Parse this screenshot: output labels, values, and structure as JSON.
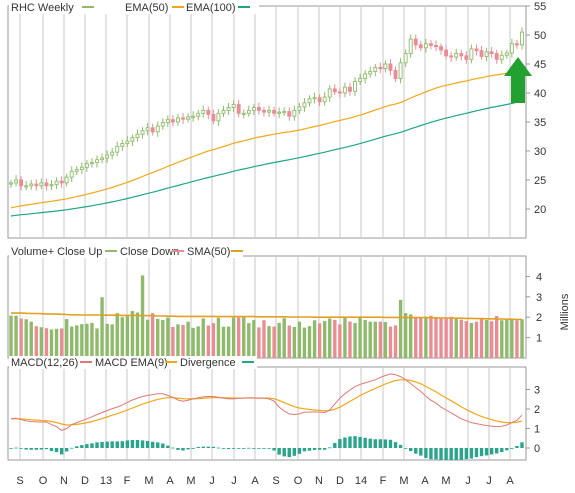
{
  "colors": {
    "up": "#8fba6c",
    "down": "#e88d94",
    "ema50": "#f0a818",
    "ema100": "#1fa586",
    "sma": "#e0a020",
    "macd": "#e07878",
    "signal": "#f0a818",
    "divergence": "#2aa58c",
    "arrow": "#22a030",
    "grid": "#c8c8c8"
  },
  "legend": {
    "price": {
      "symbol": "RHC Weekly",
      "ema50": "EMA(50)",
      "ema100": "EMA(100)"
    },
    "volume": {
      "up": "Volume+ Close Up",
      "down": "Close Down",
      "sma": "SMA(50)"
    },
    "macd": {
      "macd": "MACD(12,26)",
      "signal": "MACD EMA(9)",
      "divergence": "Divergence"
    }
  },
  "volume_axis_title": "Millions",
  "chart_data": [
    {
      "type": "candlestick",
      "title": "RHC Weekly",
      "ylim": [
        15,
        55
      ],
      "yticks": [
        20,
        25,
        30,
        35,
        40,
        45,
        50,
        55
      ],
      "x_labels": [
        "S",
        "O",
        "N",
        "D",
        "13",
        "F",
        "M",
        "A",
        "M",
        "J",
        "J",
        "A",
        "S",
        "O",
        "N",
        "D",
        "14",
        "F",
        "M",
        "A",
        "M",
        "J",
        "J",
        "A"
      ],
      "close": [
        24.5,
        25,
        24,
        24,
        24.3,
        24,
        24.5,
        24,
        24.2,
        24.8,
        24.5,
        25.5,
        26.5,
        26.8,
        27.2,
        27.8,
        28,
        28.5,
        28.8,
        29.3,
        29.8,
        30.8,
        31.3,
        31.7,
        32.3,
        32.9,
        33.5,
        34,
        33.3,
        34.3,
        34.9,
        35.4,
        35,
        35.7,
        35.5,
        35.9,
        36,
        36.5,
        37,
        36.3,
        35.2,
        36.5,
        37,
        37.5,
        38,
        36.5,
        36.5,
        37,
        37.5,
        37,
        36.7,
        37,
        36.5,
        36.7,
        36.8,
        36,
        37,
        37.6,
        38.3,
        39,
        39.2,
        38.5,
        39.3,
        40.7,
        40.2,
        40,
        41,
        40.3,
        42,
        42.5,
        43.3,
        43.7,
        44.4,
        44.2,
        45,
        43.9,
        42.5,
        45.2,
        46.8,
        49.3,
        48.3,
        47.8,
        48.5,
        48.2,
        48,
        47.4,
        46.4,
        46.2,
        46.8,
        46.4,
        45.8,
        47.6,
        47.3,
        46.3,
        47.1,
        46.8,
        45.8,
        46.5,
        46.9,
        48.5,
        48.3,
        50.5
      ],
      "series": [
        {
          "name": "EMA(50)",
          "values": [
            20.2,
            20.38,
            20.53,
            20.67,
            20.81,
            20.94,
            21.08,
            21.2,
            21.33,
            21.47,
            21.6,
            21.76,
            21.94,
            22.13,
            22.33,
            22.55,
            22.76,
            22.99,
            23.22,
            23.46,
            23.71,
            24.01,
            24.3,
            24.6,
            24.92,
            25.25,
            25.6,
            25.96,
            26.27,
            26.62,
            26.98,
            27.36,
            27.69,
            28.05,
            28.38,
            28.72,
            29.04,
            29.37,
            29.71,
            30.0,
            30.23,
            30.5,
            30.77,
            31.05,
            31.34,
            31.56,
            31.76,
            31.98,
            32.2,
            32.4,
            32.57,
            32.75,
            32.9,
            33.05,
            33.2,
            33.3,
            33.45,
            33.62,
            33.81,
            34.02,
            34.23,
            34.4,
            34.6,
            34.86,
            35.07,
            35.26,
            35.49,
            35.68,
            35.93,
            36.19,
            36.47,
            36.76,
            37.07,
            37.35,
            37.66,
            37.91,
            38.09,
            38.37,
            38.71,
            39.14,
            39.51,
            39.85,
            40.21,
            40.54,
            40.84,
            41.11,
            41.32,
            41.52,
            41.73,
            41.91,
            42.06,
            42.29,
            42.49,
            42.64,
            42.83,
            43.0,
            43.12,
            43.26,
            43.41,
            43.61,
            43.8,
            44.07
          ]
        },
        {
          "name": "EMA(100)",
          "values": [
            18.8,
            18.91,
            19.01,
            19.09,
            19.19,
            19.28,
            19.38,
            19.47,
            19.56,
            19.66,
            19.76,
            19.87,
            20.0,
            20.13,
            20.27,
            20.42,
            20.57,
            20.73,
            20.89,
            21.05,
            21.23,
            21.42,
            21.61,
            21.81,
            22.02,
            22.24,
            22.46,
            22.69,
            22.9,
            23.12,
            23.36,
            23.6,
            23.82,
            24.06,
            24.29,
            24.52,
            24.75,
            24.98,
            25.22,
            25.43,
            25.63,
            25.84,
            26.06,
            26.28,
            26.51,
            26.7,
            26.89,
            27.09,
            27.29,
            27.48,
            27.66,
            27.84,
            28.01,
            28.18,
            28.35,
            28.5,
            28.67,
            28.85,
            29.04,
            29.23,
            29.43,
            29.61,
            29.8,
            30.02,
            30.22,
            30.41,
            30.62,
            30.82,
            31.05,
            31.28,
            31.53,
            31.78,
            32.04,
            32.29,
            32.55,
            32.78,
            32.98,
            33.23,
            33.5,
            33.82,
            34.11,
            34.39,
            34.67,
            34.95,
            35.21,
            35.45,
            35.67,
            35.88,
            36.1,
            36.31,
            36.5,
            36.72,
            36.93,
            37.12,
            37.32,
            37.51,
            37.67,
            37.84,
            38.01,
            38.2,
            38.39,
            38.61
          ]
        }
      ],
      "annotation": "up-arrow"
    },
    {
      "type": "bar",
      "title": "Volume+ Close Up",
      "ylabel": "Millions",
      "ylim": [
        0,
        5
      ],
      "yticks": [
        1,
        2,
        3,
        4
      ],
      "values": [
        2.08,
        2.07,
        1.94,
        1.9,
        1.78,
        1.56,
        1.51,
        1.46,
        1.4,
        1.43,
        1.45,
        1.91,
        1.54,
        1.6,
        1.66,
        1.68,
        1.72,
        1.45,
        2.98,
        1.67,
        1.65,
        2.2,
        2.0,
        2.05,
        2.3,
        2.23,
        4.05,
        1.88,
        2.2,
        1.92,
        1.86,
        1.98,
        1.52,
        1.65,
        1.62,
        1.78,
        1.48,
        1.55,
        1.94,
        1.59,
        1.71,
        1.97,
        1.53,
        1.54,
        1.98,
        1.99,
        2.0,
        1.71,
        1.86,
        1.5,
        1.85,
        1.56,
        1.54,
        1.72,
        1.95,
        1.59,
        1.52,
        1.78,
        1.49,
        1.56,
        1.85,
        1.7,
        1.81,
        1.94,
        1.87,
        1.65,
        1.96,
        1.79,
        1.71,
        1.99,
        1.86,
        1.78,
        1.78,
        1.78,
        1.76,
        1.54,
        1.6,
        2.85,
        2.2,
        2.14,
        2.01,
        1.98,
        2.03,
        2.07,
        2.01,
        1.98,
        1.96,
        2.02,
        1.91,
        1.88,
        1.81,
        1.72,
        1.78,
        1.94,
        1.86,
        1.8,
        2.06,
        1.85,
        1.9,
        1.88,
        1.85,
        1.9
      ],
      "up": [
        true,
        true,
        false,
        true,
        true,
        false,
        true,
        false,
        true,
        true,
        false,
        true,
        true,
        true,
        true,
        true,
        true,
        true,
        true,
        true,
        true,
        true,
        true,
        true,
        true,
        true,
        true,
        true,
        false,
        true,
        true,
        true,
        false,
        true,
        false,
        true,
        true,
        true,
        true,
        false,
        false,
        true,
        true,
        true,
        true,
        false,
        true,
        true,
        true,
        false,
        false,
        true,
        false,
        true,
        true,
        false,
        true,
        true,
        true,
        true,
        true,
        false,
        true,
        true,
        false,
        false,
        true,
        false,
        true,
        true,
        true,
        true,
        true,
        false,
        true,
        false,
        false,
        true,
        true,
        true,
        false,
        false,
        true,
        false,
        false,
        false,
        false,
        false,
        true,
        false,
        false,
        true,
        false,
        false,
        true,
        false,
        false,
        true,
        true,
        true,
        false,
        true
      ],
      "series": [
        {
          "name": "SMA(50)",
          "values": [
            2.2,
            2.2,
            2.2,
            2.19,
            2.18,
            2.18,
            2.17,
            2.16,
            2.16,
            2.15,
            2.14,
            2.13,
            2.12,
            2.12,
            2.11,
            2.11,
            2.11,
            2.11,
            2.11,
            2.1,
            2.1,
            2.1,
            2.09,
            2.09,
            2.09,
            2.08,
            2.08,
            2.08,
            2.07,
            2.06,
            2.06,
            2.05,
            2.05,
            2.04,
            2.04,
            2.04,
            2.04,
            2.04,
            2.04,
            2.04,
            2.04,
            2.03,
            2.03,
            2.03,
            2.03,
            2.03,
            2.03,
            2.03,
            2.03,
            2.02,
            2.02,
            2.02,
            2.02,
            2.02,
            2.02,
            2.01,
            2.01,
            2.01,
            2.01,
            2.01,
            2.0,
            2.0,
            2.0,
            2.0,
            2.0,
            2.0,
            2.0,
            2.0,
            2.0,
            2.0,
            2.0,
            2.0,
            2.0,
            2.0,
            1.99,
            1.99,
            1.99,
            1.99,
            1.99,
            1.98,
            1.98,
            1.98,
            1.98,
            1.97,
            1.97,
            1.96,
            1.96,
            1.96,
            1.95,
            1.95,
            1.94,
            1.94,
            1.93,
            1.93,
            1.92,
            1.92,
            1.91,
            1.91,
            1.9,
            1.9,
            1.89,
            1.89
          ]
        }
      ]
    },
    {
      "type": "line",
      "title": "MACD(12,26)",
      "ylim": [
        -1,
        4
      ],
      "yticks": [
        0,
        1,
        2,
        3
      ],
      "series": [
        {
          "name": "MACD(12,26)",
          "values": [
            1.5,
            1.53,
            1.45,
            1.39,
            1.36,
            1.34,
            1.33,
            1.34,
            1.2,
            1.1,
            0.9,
            1.0,
            1.2,
            1.3,
            1.4,
            1.5,
            1.6,
            1.72,
            1.82,
            1.92,
            2.02,
            2.1,
            2.2,
            2.34,
            2.46,
            2.56,
            2.64,
            2.7,
            2.74,
            2.78,
            2.78,
            2.7,
            2.6,
            2.46,
            2.4,
            2.45,
            2.52,
            2.58,
            2.62,
            2.64,
            2.64,
            2.6,
            2.56,
            2.52,
            2.52,
            2.55,
            2.56,
            2.58,
            2.56,
            2.56,
            2.56,
            2.52,
            2.4,
            2.1,
            1.9,
            1.75,
            1.72,
            1.75,
            1.84,
            1.84,
            1.85,
            1.84,
            1.82,
            1.95,
            2.25,
            2.56,
            2.78,
            2.98,
            3.15,
            3.26,
            3.34,
            3.42,
            3.5,
            3.62,
            3.72,
            3.8,
            3.76,
            3.66,
            3.5,
            3.3,
            3.1,
            2.9,
            2.65,
            2.45,
            2.3,
            2.1,
            1.95,
            1.8,
            1.65,
            1.5,
            1.4,
            1.3,
            1.25,
            1.2,
            1.15,
            1.12,
            1.1,
            1.12,
            1.18,
            1.3,
            1.42,
            1.68
          ]
        },
        {
          "name": "MACD EMA(9)",
          "values": [
            1.5,
            1.51,
            1.49,
            1.47,
            1.45,
            1.43,
            1.41,
            1.4,
            1.36,
            1.31,
            1.23,
            1.18,
            1.19,
            1.21,
            1.25,
            1.3,
            1.36,
            1.43,
            1.51,
            1.59,
            1.68,
            1.76,
            1.85,
            1.95,
            2.05,
            2.15,
            2.25,
            2.34,
            2.42,
            2.49,
            2.55,
            2.58,
            2.58,
            2.56,
            2.53,
            2.52,
            2.52,
            2.53,
            2.55,
            2.57,
            2.58,
            2.58,
            2.58,
            2.57,
            2.56,
            2.56,
            2.56,
            2.57,
            2.57,
            2.56,
            2.56,
            2.56,
            2.53,
            2.44,
            2.33,
            2.22,
            2.12,
            2.05,
            2.01,
            1.98,
            1.95,
            1.93,
            1.91,
            1.92,
            1.99,
            2.1,
            2.24,
            2.39,
            2.54,
            2.69,
            2.82,
            2.94,
            3.05,
            3.17,
            3.28,
            3.38,
            3.46,
            3.5,
            3.5,
            3.46,
            3.39,
            3.29,
            3.16,
            3.02,
            2.88,
            2.72,
            2.57,
            2.42,
            2.27,
            2.11,
            1.97,
            1.84,
            1.72,
            1.62,
            1.53,
            1.45,
            1.38,
            1.33,
            1.3,
            1.3,
            1.32,
            1.39
          ]
        },
        {
          "name": "Divergence",
          "values": [
            0.0,
            0.02,
            -0.04,
            -0.08,
            -0.09,
            -0.09,
            -0.08,
            -0.06,
            -0.16,
            -0.21,
            -0.33,
            -0.18,
            0.01,
            0.09,
            0.15,
            0.2,
            0.24,
            0.29,
            0.31,
            0.33,
            0.34,
            0.34,
            0.35,
            0.39,
            0.41,
            0.41,
            0.39,
            0.36,
            0.32,
            0.29,
            0.23,
            0.12,
            0.02,
            -0.1,
            -0.13,
            -0.07,
            0.0,
            0.05,
            0.07,
            0.07,
            0.06,
            0.02,
            -0.02,
            -0.05,
            -0.04,
            -0.01,
            0.0,
            0.01,
            -0.01,
            0.0,
            0.0,
            -0.04,
            -0.13,
            -0.34,
            -0.43,
            -0.47,
            -0.4,
            -0.3,
            -0.17,
            -0.14,
            -0.1,
            -0.09,
            -0.09,
            0.03,
            0.26,
            0.46,
            0.54,
            0.59,
            0.61,
            0.57,
            0.52,
            0.48,
            0.45,
            0.45,
            0.44,
            0.42,
            0.3,
            0.16,
            0.0,
            -0.16,
            -0.29,
            -0.39,
            -0.51,
            -0.57,
            -0.58,
            -0.62,
            -0.62,
            -0.62,
            -0.62,
            -0.61,
            -0.57,
            -0.54,
            -0.47,
            -0.42,
            -0.38,
            -0.33,
            -0.28,
            -0.21,
            -0.12,
            0.0,
            0.1,
            0.29
          ]
        }
      ]
    }
  ]
}
